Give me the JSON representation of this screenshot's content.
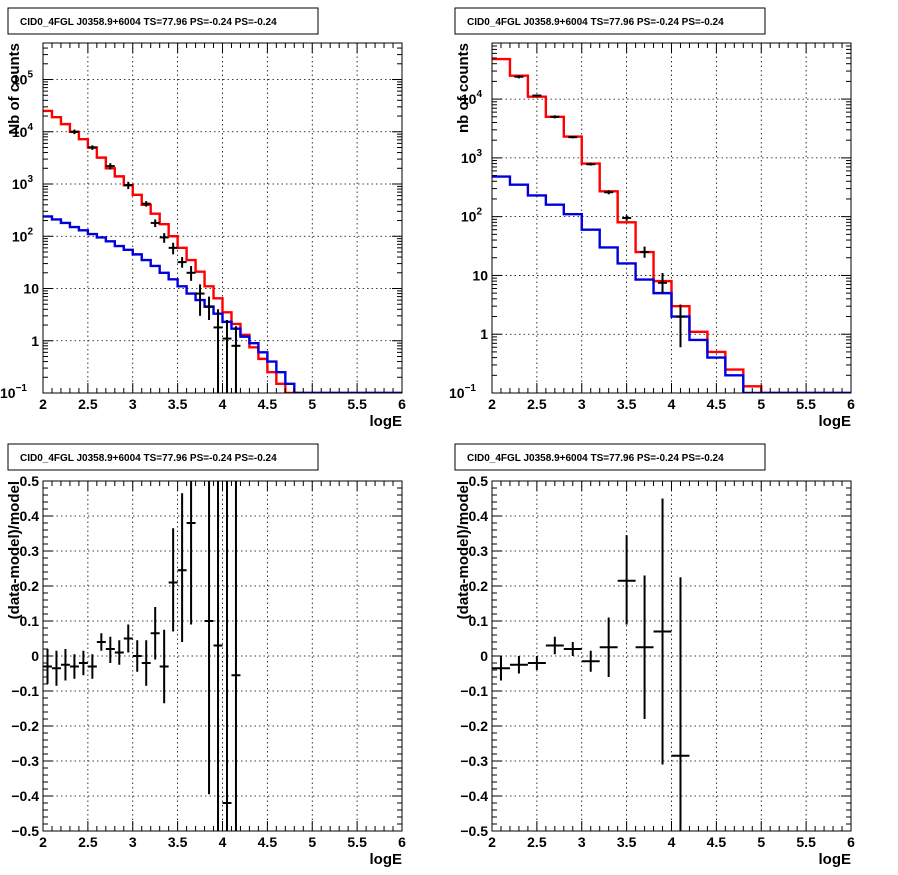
{
  "colors": {
    "total_model": "#ff0000",
    "source_model": "#0000dd",
    "data": "#000000",
    "background": "#ffffff"
  },
  "chart_data": [
    {
      "type": "line",
      "title": "CID0_4FGL J0358.9+6004 TS=77.96 PS=-0.24 PS=-0.24",
      "xlabel": "logE",
      "ylabel": "Nb of counts",
      "log_y": true,
      "xlim": [
        2,
        6
      ],
      "ylim": [
        0.1,
        500000
      ],
      "grid": true,
      "x_ticks": [
        "2",
        "2.5",
        "3",
        "3.5",
        "4",
        "4.5",
        "5",
        "5.5",
        "6"
      ],
      "y_ticks": [
        {
          "value": 0.1,
          "label": "10",
          "exp": "−1"
        },
        {
          "value": 1,
          "label": "1",
          "exp": ""
        },
        {
          "value": 10,
          "label": "10",
          "exp": ""
        },
        {
          "value": 100,
          "label": "10",
          "exp": "2"
        },
        {
          "value": 1000,
          "label": "10",
          "exp": "3"
        },
        {
          "value": 10000,
          "label": "10",
          "exp": "4"
        },
        {
          "value": 100000,
          "label": "10",
          "exp": "5"
        }
      ],
      "bin_edges": [
        2.0,
        2.1,
        2.2,
        2.3,
        2.4,
        2.5,
        2.6,
        2.7,
        2.8,
        2.9,
        3.0,
        3.1,
        3.2,
        3.3,
        3.4,
        3.5,
        3.6,
        3.7,
        3.8,
        3.9,
        4.0,
        4.1,
        4.2,
        4.3,
        4.4,
        4.5,
        4.6,
        4.7,
        4.8,
        4.9,
        5.0,
        5.1,
        5.2,
        5.3,
        5.4,
        5.5,
        5.6,
        5.7,
        5.8,
        5.9,
        6.0
      ],
      "series": [
        {
          "style": "step",
          "color": "#ff0000",
          "values": [
            25000,
            19000,
            14000,
            10000,
            7200,
            5000,
            3200,
            2000,
            1400,
            950,
            620,
            400,
            270,
            170,
            100,
            60,
            35,
            21,
            11,
            6.5,
            3.5,
            2.1,
            1.3,
            0.75,
            0.45,
            0.25,
            0.15,
            0.1,
            0.1,
            0.1,
            0.1,
            0.1,
            0.1,
            0.1,
            0.1,
            0.1,
            0.1,
            0.1,
            0.1,
            0.1
          ]
        },
        {
          "style": "step",
          "color": "#0000dd",
          "values": [
            240,
            210,
            180,
            150,
            130,
            110,
            95,
            80,
            65,
            55,
            45,
            35,
            27,
            20,
            15,
            11,
            8,
            6,
            4.5,
            3.3,
            2.3,
            1.7,
            1.2,
            0.9,
            0.6,
            0.4,
            0.25,
            0.15,
            0.1,
            0.1,
            0.1,
            0.1,
            0.1,
            0.1,
            0.1,
            0.1,
            0.1,
            0.1,
            0.1,
            0.1
          ]
        },
        {
          "style": "points",
          "color": "#000000",
          "x": [
            2.35,
            2.55,
            2.75,
            2.95,
            3.15,
            3.25,
            3.35,
            3.45,
            3.55,
            3.65,
            3.75,
            3.85,
            3.95,
            4.05,
            4.15
          ],
          "y": [
            10000,
            5000,
            2200,
            950,
            420,
            180,
            95,
            60,
            32,
            20,
            8,
            4.5,
            1.8,
            1.1,
            0.8
          ],
          "ylow": [
            9000,
            4500,
            1900,
            800,
            370,
            150,
            75,
            45,
            25,
            14,
            3,
            2.5,
            0.1,
            0.1,
            0.1
          ],
          "yhigh": [
            11000,
            5500,
            2500,
            1100,
            470,
            210,
            115,
            75,
            40,
            27,
            12,
            7,
            4,
            2.5,
            1.9
          ]
        }
      ]
    },
    {
      "type": "line",
      "title": "CID0_4FGL J0358.9+6004 TS=77.96 PS=-0.24 PS=-0.24",
      "xlabel": "logE",
      "ylabel": "nb of counts",
      "log_y": true,
      "xlim": [
        2,
        6
      ],
      "ylim": [
        0.1,
        90000
      ],
      "grid": true,
      "x_ticks": [
        "2",
        "2.5",
        "3",
        "3.5",
        "4",
        "4.5",
        "5",
        "5.5",
        "6"
      ],
      "y_ticks": [
        {
          "value": 0.1,
          "label": "10",
          "exp": "−1"
        },
        {
          "value": 1,
          "label": "1",
          "exp": ""
        },
        {
          "value": 10,
          "label": "10",
          "exp": ""
        },
        {
          "value": 100,
          "label": "10",
          "exp": "2"
        },
        {
          "value": 1000,
          "label": "10",
          "exp": "3"
        },
        {
          "value": 10000,
          "label": "10",
          "exp": "4"
        }
      ],
      "bin_edges": [
        2.0,
        2.2,
        2.4,
        2.6,
        2.8,
        3.0,
        3.2,
        3.4,
        3.6,
        3.8,
        4.0,
        4.2,
        4.4,
        4.6,
        4.8,
        5.0,
        5.2,
        5.4,
        5.6,
        5.8,
        6.0
      ],
      "series": [
        {
          "style": "step",
          "color": "#ff0000",
          "values": [
            48000,
            25000,
            11000,
            5000,
            2300,
            800,
            270,
            80,
            25,
            8,
            3,
            1.1,
            0.5,
            0.25,
            0.13,
            0.1,
            0.1,
            0.1,
            0.1,
            0.1
          ]
        },
        {
          "style": "step",
          "color": "#0000dd",
          "values": [
            480,
            350,
            230,
            160,
            110,
            60,
            30,
            16,
            8.5,
            5,
            2,
            0.8,
            0.4,
            0.2,
            0.1,
            0.1,
            0.1,
            0.1,
            0.1,
            0.1
          ]
        },
        {
          "style": "points",
          "color": "#000000",
          "x": [
            2.3,
            2.5,
            2.7,
            2.9,
            3.1,
            3.3,
            3.5,
            3.7,
            3.9,
            4.1
          ],
          "y": [
            24000,
            11500,
            5000,
            2250,
            780,
            260,
            95,
            25,
            7.5,
            2
          ],
          "ylow": [
            22500,
            11000,
            4700,
            2150,
            740,
            240,
            85,
            20,
            5,
            0.6
          ],
          "yhigh": [
            25500,
            12000,
            5300,
            2350,
            820,
            280,
            105,
            31,
            11,
            3.2
          ]
        }
      ]
    },
    {
      "type": "scatter",
      "title": "CID0_4FGL J0358.9+6004 TS=77.96 PS=-0.24 PS=-0.24",
      "xlabel": "logE",
      "ylabel": "(data-model)/model",
      "log_y": false,
      "xlim": [
        2,
        6
      ],
      "ylim": [
        -0.5,
        0.5
      ],
      "grid": true,
      "x_ticks": [
        "2",
        "2.5",
        "3",
        "3.5",
        "4",
        "4.5",
        "5",
        "5.5",
        "6"
      ],
      "y_ticks": [
        {
          "value": -0.5,
          "label": "−0.5",
          "exp": ""
        },
        {
          "value": -0.4,
          "label": "−0.4",
          "exp": ""
        },
        {
          "value": -0.3,
          "label": "−0.3",
          "exp": ""
        },
        {
          "value": -0.2,
          "label": "−0.2",
          "exp": ""
        },
        {
          "value": -0.1,
          "label": "−0.1",
          "exp": ""
        },
        {
          "value": 0,
          "label": "0",
          "exp": ""
        },
        {
          "value": 0.1,
          "label": "0.1",
          "exp": ""
        },
        {
          "value": 0.2,
          "label": "0.2",
          "exp": ""
        },
        {
          "value": 0.3,
          "label": "0.3",
          "exp": ""
        },
        {
          "value": 0.4,
          "label": "0.4",
          "exp": ""
        },
        {
          "value": 0.5,
          "label": "0.5",
          "exp": ""
        }
      ],
      "series": [
        {
          "style": "points",
          "color": "#000000",
          "xerr": 0.05,
          "x": [
            2.05,
            2.15,
            2.25,
            2.35,
            2.45,
            2.55,
            2.65,
            2.75,
            2.85,
            2.95,
            3.05,
            3.15,
            3.25,
            3.35,
            3.45,
            3.55,
            3.65,
            3.85,
            3.95,
            4.05,
            4.15
          ],
          "y": [
            -0.03,
            -0.035,
            -0.025,
            -0.03,
            -0.02,
            -0.03,
            0.04,
            0.02,
            0.01,
            0.05,
            0.0,
            -0.02,
            0.065,
            -0.03,
            0.21,
            0.245,
            0.38,
            0.1,
            0.03,
            -0.42,
            -0.055
          ],
          "ylow": [
            -0.08,
            -0.085,
            -0.07,
            -0.065,
            -0.055,
            -0.065,
            0.015,
            -0.02,
            -0.025,
            0.01,
            -0.045,
            -0.085,
            -0.01,
            -0.135,
            0.07,
            0.04,
            0.09,
            -0.395,
            -0.5,
            -0.5,
            -0.5
          ],
          "yhigh": [
            0.02,
            0.015,
            0.02,
            0.005,
            0.015,
            0.005,
            0.065,
            0.055,
            0.045,
            0.09,
            0.045,
            0.045,
            0.14,
            0.075,
            0.365,
            0.465,
            0.5,
            0.5,
            0.5,
            0.5,
            0.5
          ]
        }
      ]
    },
    {
      "type": "scatter",
      "title": "CID0_4FGL J0358.9+6004 TS=77.96 PS=-0.24 PS=-0.24",
      "xlabel": "logE",
      "ylabel": "(data-model)/model",
      "log_y": false,
      "xlim": [
        2,
        6
      ],
      "ylim": [
        -0.5,
        0.5
      ],
      "grid": true,
      "x_ticks": [
        "2",
        "2.5",
        "3",
        "3.5",
        "4",
        "4.5",
        "5",
        "5.5",
        "6"
      ],
      "y_ticks": [
        {
          "value": -0.5,
          "label": "−0.5",
          "exp": ""
        },
        {
          "value": -0.4,
          "label": "−0.4",
          "exp": ""
        },
        {
          "value": -0.3,
          "label": "−0.3",
          "exp": ""
        },
        {
          "value": -0.2,
          "label": "−0.2",
          "exp": ""
        },
        {
          "value": -0.1,
          "label": "−0.1",
          "exp": ""
        },
        {
          "value": 0,
          "label": "0",
          "exp": ""
        },
        {
          "value": 0.1,
          "label": "0.1",
          "exp": ""
        },
        {
          "value": 0.2,
          "label": "0.2",
          "exp": ""
        },
        {
          "value": 0.3,
          "label": "0.3",
          "exp": ""
        },
        {
          "value": 0.4,
          "label": "0.4",
          "exp": ""
        },
        {
          "value": 0.5,
          "label": "0.5",
          "exp": ""
        }
      ],
      "series": [
        {
          "style": "points",
          "color": "#000000",
          "xerr": 0.1,
          "x": [
            2.1,
            2.3,
            2.5,
            2.7,
            2.9,
            3.1,
            3.3,
            3.5,
            3.7,
            3.9,
            4.1
          ],
          "y": [
            -0.035,
            -0.025,
            -0.02,
            0.03,
            0.02,
            -0.015,
            0.025,
            0.215,
            0.025,
            0.07,
            -0.285
          ],
          "ylow": [
            -0.07,
            -0.05,
            -0.04,
            0.005,
            0.0,
            -0.045,
            -0.06,
            0.09,
            -0.18,
            -0.31,
            -0.5
          ],
          "yhigh": [
            0.0,
            0.0,
            0.0,
            0.055,
            0.04,
            0.015,
            0.11,
            0.345,
            0.23,
            0.45,
            0.225
          ]
        }
      ]
    }
  ]
}
